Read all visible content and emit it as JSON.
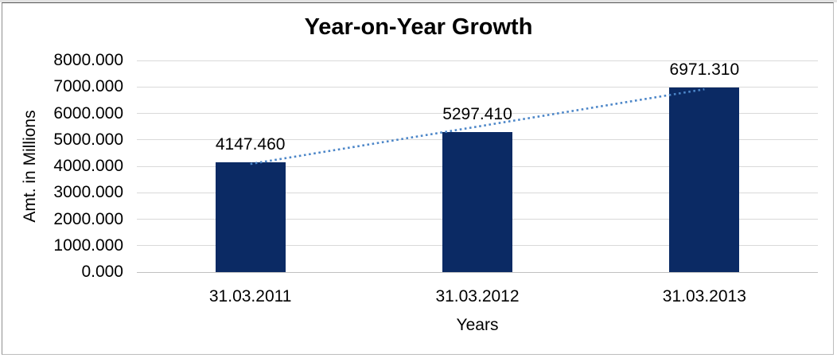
{
  "chart_data": {
    "type": "bar",
    "title": "Year-on-Year Growth",
    "xlabel": "Years",
    "ylabel": "Amt. in Millions",
    "categories": [
      "31.03.2011",
      "31.03.2012",
      "31.03.2013"
    ],
    "values": [
      4147.46,
      5297.41,
      6971.31
    ],
    "data_labels": [
      "4147.460",
      "5297.410",
      "6971.310"
    ],
    "y_tick_labels": [
      "8000.000",
      "7000.000",
      "6000.000",
      "5000.000",
      "4000.000",
      "3000.000",
      "2000.000",
      "1000.000",
      "0.000"
    ],
    "ylim": [
      0,
      8000
    ],
    "grid": "horizontal",
    "legend": "none",
    "trendline": {
      "type": "linear",
      "style": "dotted",
      "color": "#4C86C8"
    },
    "colors": {
      "bar": "#0B2A64",
      "gridline": "#D9D9D9",
      "baseline": "#C0C0C0",
      "text": "#000000",
      "background": "#FFFFFF"
    }
  }
}
